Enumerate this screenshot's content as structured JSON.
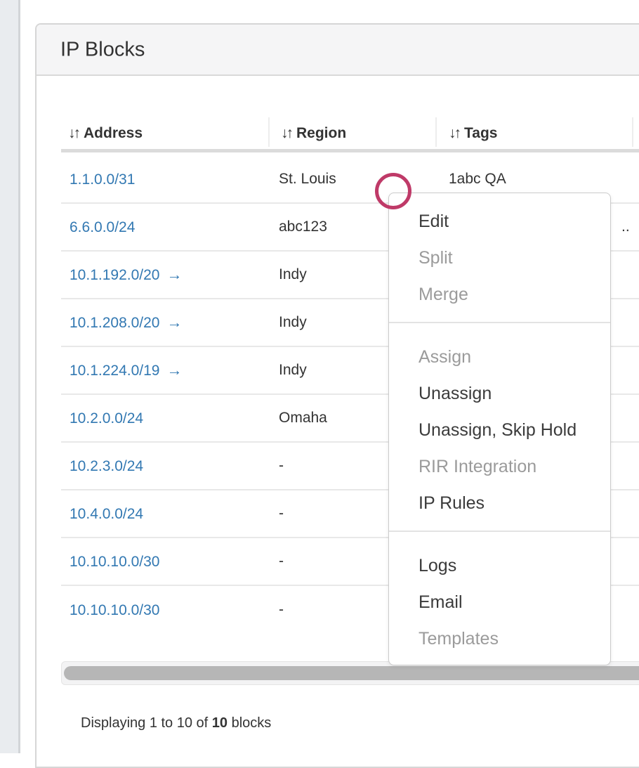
{
  "colors": {
    "link": "#3278b2",
    "click_indicator": "#bf3a68"
  },
  "panel": {
    "title": "IP Blocks"
  },
  "table": {
    "sort_icon": "↓↑",
    "columns": [
      {
        "label": "Address"
      },
      {
        "label": "Region"
      },
      {
        "label": "Tags"
      }
    ],
    "rows": [
      {
        "address": "1.1.0.0/31",
        "arrow": "",
        "region": "St. Louis",
        "tags": "1abc QA",
        "tags_overflow": ""
      },
      {
        "address": "6.6.0.0/24",
        "arrow": "",
        "region": "abc123",
        "tags": "",
        "tags_overflow": ".."
      },
      {
        "address": "10.1.192.0/20",
        "arrow": "→",
        "region": "Indy",
        "tags": "",
        "tags_overflow": ""
      },
      {
        "address": "10.1.208.0/20",
        "arrow": "→",
        "region": "Indy",
        "tags": "",
        "tags_overflow": ""
      },
      {
        "address": "10.1.224.0/19",
        "arrow": "→",
        "region": "Indy",
        "tags": "",
        "tags_overflow": ""
      },
      {
        "address": "10.2.0.0/24",
        "arrow": "",
        "region": "Omaha",
        "tags": "",
        "tags_overflow": ""
      },
      {
        "address": "10.2.3.0/24",
        "arrow": "",
        "region": "-",
        "tags": "",
        "tags_overflow": ""
      },
      {
        "address": "10.4.0.0/24",
        "arrow": "",
        "region": "-",
        "tags": "",
        "tags_overflow": ""
      },
      {
        "address": "10.10.10.0/30",
        "arrow": "",
        "region": "-",
        "tags": "",
        "tags_overflow": ""
      },
      {
        "address": "10.10.10.0/30",
        "arrow": "",
        "region": "-",
        "tags": "",
        "tags_overflow": ""
      }
    ]
  },
  "context_menu": {
    "items": [
      {
        "label": "Edit",
        "enabled": true
      },
      {
        "label": "Split",
        "enabled": false
      },
      {
        "label": "Merge",
        "enabled": false
      },
      {
        "divider": true
      },
      {
        "label": "Assign",
        "enabled": false
      },
      {
        "label": "Unassign",
        "enabled": true
      },
      {
        "label": "Unassign, Skip Hold",
        "enabled": true
      },
      {
        "label": "RIR Integration",
        "enabled": false
      },
      {
        "label": "IP Rules",
        "enabled": true
      },
      {
        "divider": true
      },
      {
        "label": "Logs",
        "enabled": true
      },
      {
        "label": "Email",
        "enabled": true
      },
      {
        "label": "Templates",
        "enabled": false
      }
    ]
  },
  "footer": {
    "prefix": "Displaying 1 to 10 of ",
    "count": "10",
    "suffix": " blocks"
  }
}
